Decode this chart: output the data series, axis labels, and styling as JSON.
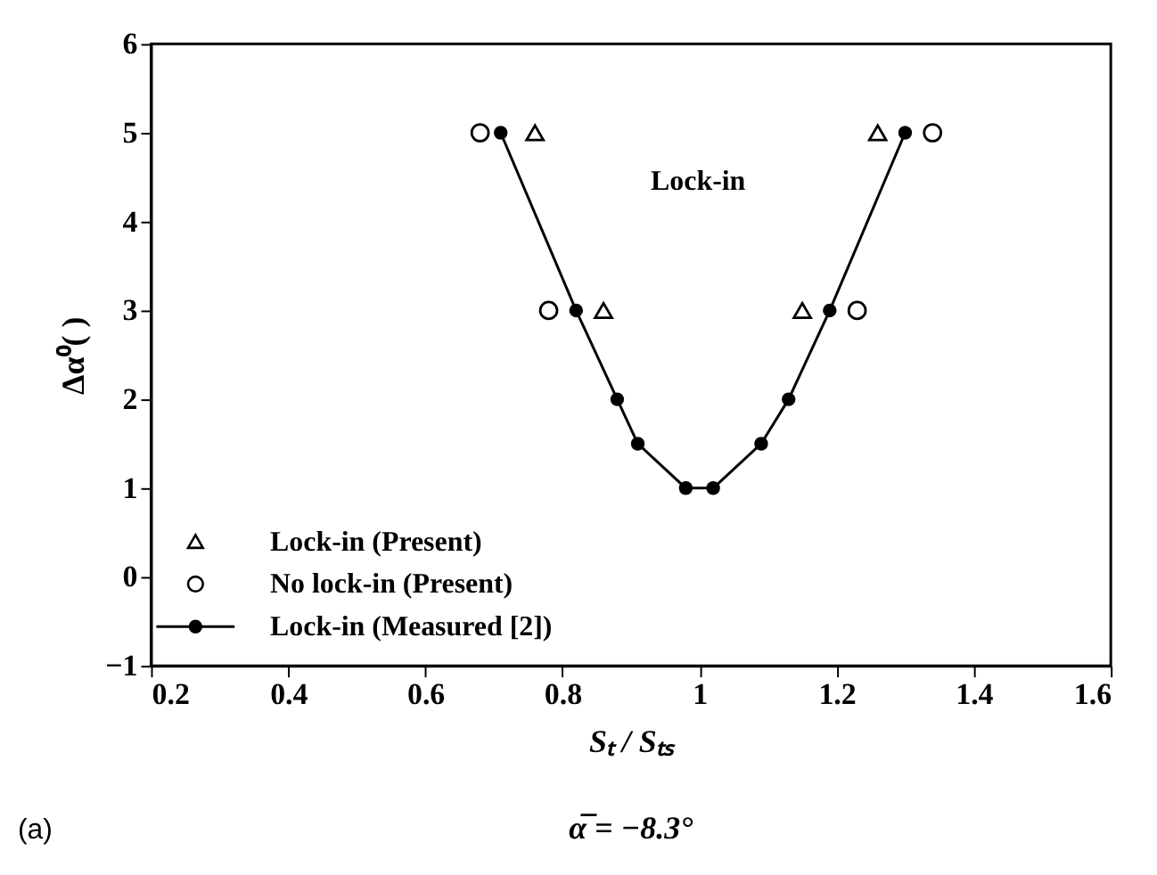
{
  "chart_data": {
    "type": "scatter",
    "xlabel": "Sₜ / Sₜₛ",
    "ylabel": "Δα⁰( )",
    "xlim": [
      0.2,
      1.6
    ],
    "xticks": [
      0.2,
      0.4,
      0.6,
      0.8,
      1,
      1.2,
      1.4,
      1.6
    ],
    "ylim": [
      -1,
      6
    ],
    "yticks": [
      -1,
      0,
      1,
      2,
      3,
      4,
      5,
      6
    ],
    "grid": false,
    "legend": "bottom left",
    "series": [
      {
        "name": "Lock-in (Present)",
        "marker": "triangle",
        "color": "#000000",
        "x": [
          0.76,
          0.86,
          1.15,
          1.26
        ],
        "values": [
          5,
          3,
          3,
          5
        ]
      },
      {
        "name": "No lock-in (Present)",
        "marker": "circle",
        "color": "#000000",
        "x": [
          0.68,
          0.78,
          1.23,
          1.34
        ],
        "values": [
          5,
          3,
          3,
          5
        ]
      },
      {
        "name": "Lock-in (Measured [2])",
        "type": "line",
        "marker": "circle",
        "line_style": "solid",
        "color": "#000000",
        "x": [
          0.71,
          0.82,
          0.88,
          0.91,
          0.98,
          1.02,
          1.09,
          1.13,
          1.19,
          1.3
        ],
        "values": [
          5,
          3,
          2,
          1.5,
          1,
          1,
          1.5,
          2,
          3,
          5
        ]
      }
    ],
    "annotations": [
      "Lock-in",
      "(a)",
      "α̅ = −8.3°"
    ]
  }
}
